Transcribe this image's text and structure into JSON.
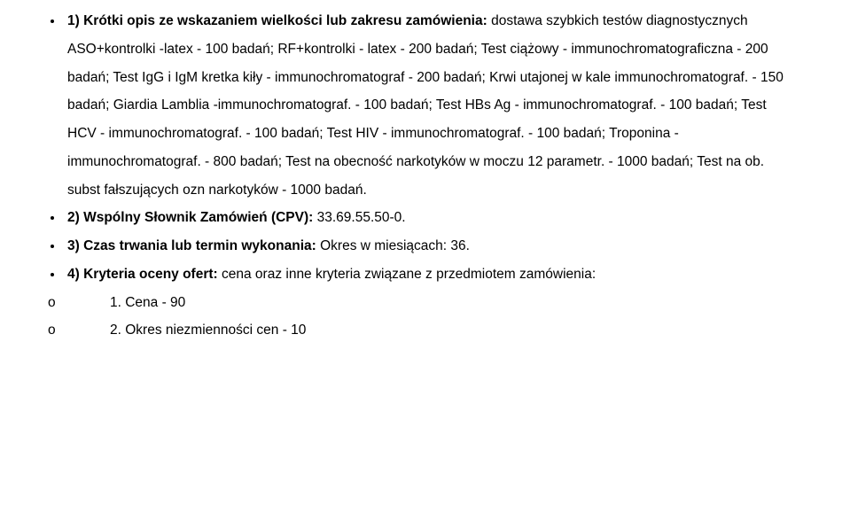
{
  "items": {
    "i1": {
      "lead_bold": "1) Krótki opis ze wskazaniem wielkości lub zakresu zamówienia:",
      "body": " dostawa szybkich testów diagnostycznych ASO+kontrolki -latex - 100 badań; RF+kontrolki - latex - 200 badań; Test ciążowy - immunochromatograficzna - 200 badań; Test IgG i IgM kretka kiły - immunochromatograf - 200 badań; Krwi utajonej w kale immunochromatograf. - 150 badań; Giardia Lamblia -immunochromatograf. - 100 badań; Test HBs Ag - immunochromatograf. - 100 badań; Test HCV - immunochromatograf. - 100 badań; Test HIV - immunochromatograf. - 100 badań; Troponina - immunochromatograf. - 800 badań; Test na obecność narkotyków w moczu 12 parametr. - 1000 badań; Test na ob. subst fałszujących ozn narkotyków - 1000 badań."
    },
    "i2": {
      "lead_bold": "2) Wspólny Słownik Zamówień (CPV):",
      "body": " 33.69.55.50-0."
    },
    "i3": {
      "lead_bold": "3) Czas trwania lub termin wykonania:",
      "body": " Okres w miesiącach: 36."
    },
    "i4": {
      "lead_bold": "4) Kryteria oceny ofert: ",
      "body": "cena oraz inne kryteria związane z przedmiotem zamówienia:"
    }
  },
  "sub": {
    "marker": "o",
    "s1": "1. Cena - 90",
    "s2": "2. Okres niezmienności cen - 10"
  }
}
